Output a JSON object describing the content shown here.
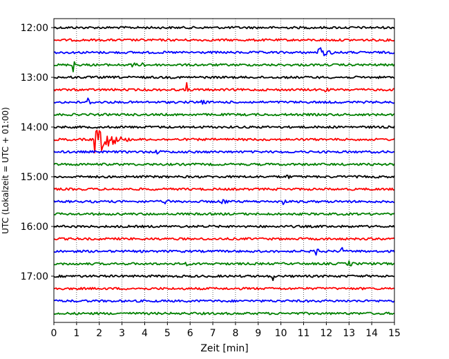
{
  "chart_data": {
    "type": "line",
    "xlabel": "Zeit  [min]",
    "ylabel": "UTC (Lokalzeit = UTC + 01:00)",
    "xlim": [
      0,
      15
    ],
    "x_ticks": [
      "0",
      "1",
      "2",
      "3",
      "4",
      "5",
      "6",
      "7",
      "8",
      "9",
      "10",
      "11",
      "12",
      "13",
      "14",
      "15"
    ],
    "y_ticks": [
      {
        "label": "12:00",
        "row": 0
      },
      {
        "label": "13:00",
        "row": 4
      },
      {
        "label": "14:00",
        "row": 8
      },
      {
        "label": "15:00",
        "row": 12
      },
      {
        "label": "16:00",
        "row": 16
      },
      {
        "label": "17:00",
        "row": 20
      }
    ],
    "grid": "vertical dotted",
    "trace_colors": [
      "#000000",
      "#ff0000",
      "#0000ff",
      "#008000"
    ],
    "traces": {
      "count": 24,
      "start_time": "12:00",
      "minutes_per_trace": 15,
      "events": [
        {
          "row": 2,
          "minute": 11.7,
          "amplitude": 0.45,
          "duration": 1.2
        },
        {
          "row": 3,
          "minute": 0.9,
          "amplitude": 0.7,
          "duration": 0.15
        },
        {
          "row": 3,
          "minute": 3.4,
          "amplitude": 0.3,
          "duration": 0.6
        },
        {
          "row": 3,
          "minute": 3.9,
          "amplitude": 0.3,
          "duration": 0.4
        },
        {
          "row": 5,
          "minute": 5.85,
          "amplitude": 0.65,
          "duration": 0.15
        },
        {
          "row": 5,
          "minute": 11.9,
          "amplitude": 0.25,
          "duration": 0.6
        },
        {
          "row": 6,
          "minute": 1.55,
          "amplitude": 0.45,
          "duration": 0.15
        },
        {
          "row": 6,
          "minute": 6.5,
          "amplitude": 0.25,
          "duration": 0.6
        },
        {
          "row": 9,
          "minute": 1.85,
          "amplitude": 1.35,
          "duration": 1.6
        },
        {
          "row": 10,
          "minute": 4.5,
          "amplitude": 0.2,
          "duration": 1.0
        },
        {
          "row": 12,
          "minute": 10.3,
          "amplitude": 0.2,
          "duration": 0.5
        },
        {
          "row": 14,
          "minute": 4.9,
          "amplitude": 0.25,
          "duration": 0.6
        },
        {
          "row": 14,
          "minute": 7.4,
          "amplitude": 0.3,
          "duration": 0.8
        },
        {
          "row": 14,
          "minute": 10.15,
          "amplitude": 0.35,
          "duration": 0.12
        },
        {
          "row": 18,
          "minute": 11.6,
          "amplitude": 0.4,
          "duration": 0.4
        },
        {
          "row": 18,
          "minute": 12.7,
          "amplitude": 0.3,
          "duration": 0.15
        },
        {
          "row": 19,
          "minute": 5.8,
          "amplitude": 0.25,
          "duration": 0.3
        },
        {
          "row": 19,
          "minute": 13.0,
          "amplitude": 0.3,
          "duration": 0.5
        },
        {
          "row": 20,
          "minute": 9.65,
          "amplitude": 0.4,
          "duration": 0.1
        }
      ]
    }
  }
}
